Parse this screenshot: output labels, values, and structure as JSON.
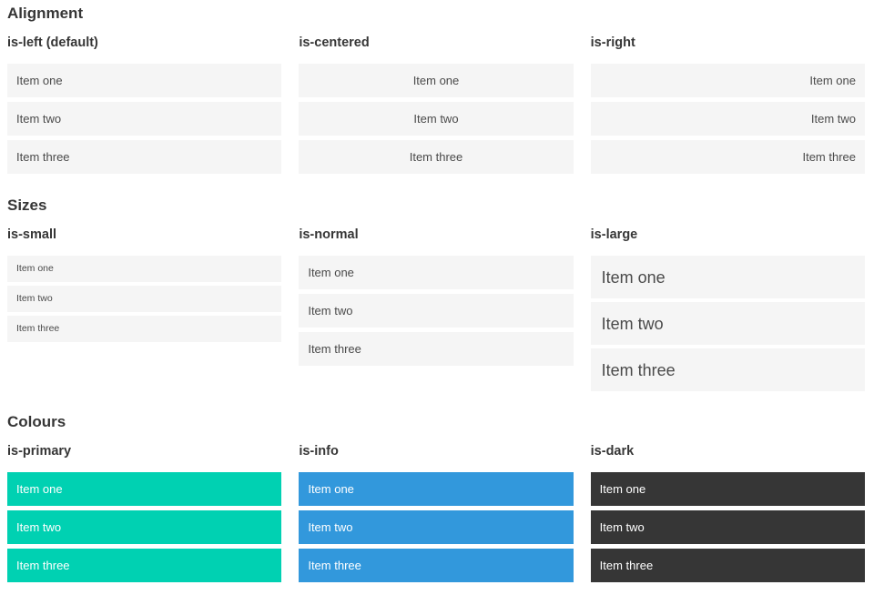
{
  "items": [
    "Item one",
    "Item two",
    "Item three"
  ],
  "colors": {
    "primary": "#00d1b2",
    "info": "#3298dc",
    "dark": "#363636",
    "item_background": "#f5f5f5",
    "item_text": "#4a4a4a",
    "heading_text": "#363636"
  },
  "sections": [
    {
      "title": "Alignment",
      "groups": [
        {
          "label": "is-left (default)"
        },
        {
          "label": "is-centered"
        },
        {
          "label": "is-right"
        }
      ]
    },
    {
      "title": "Sizes",
      "groups": [
        {
          "label": "is-small"
        },
        {
          "label": "is-normal"
        },
        {
          "label": "is-large"
        }
      ]
    },
    {
      "title": "Colours",
      "groups": [
        {
          "label": "is-primary"
        },
        {
          "label": "is-info"
        },
        {
          "label": "is-dark"
        }
      ]
    }
  ]
}
